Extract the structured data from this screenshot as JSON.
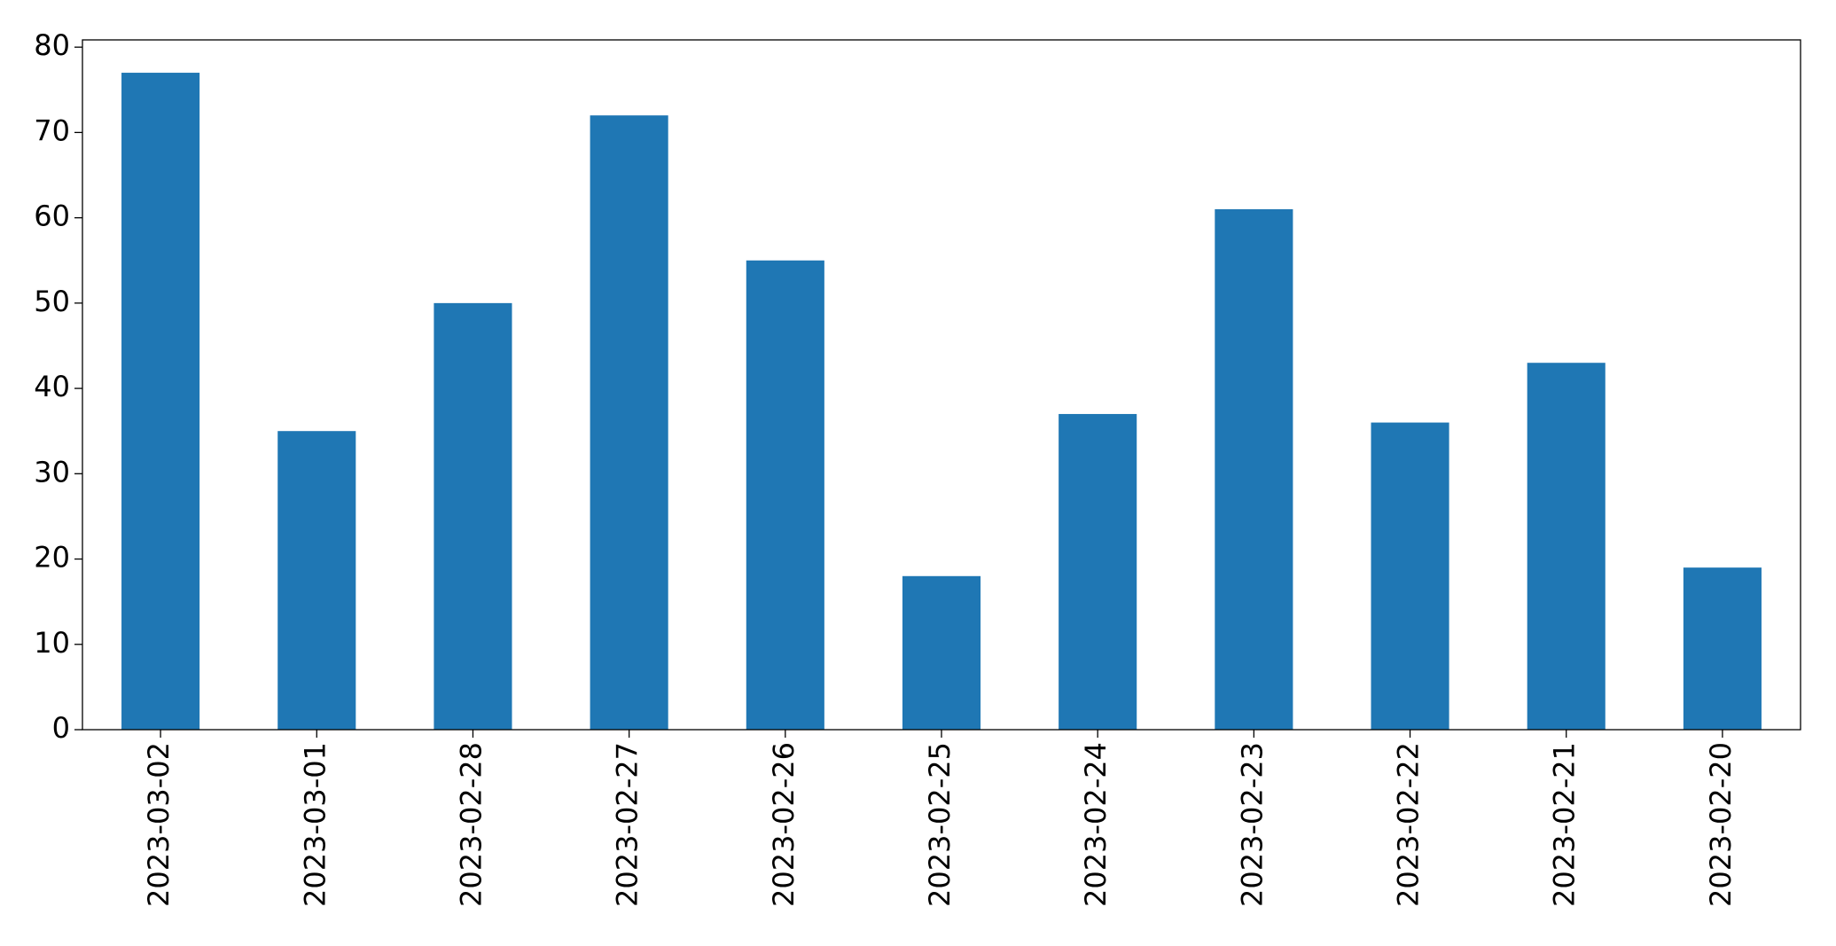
{
  "chart_data": {
    "type": "bar",
    "categories": [
      "2023-03-02",
      "2023-03-01",
      "2023-02-28",
      "2023-02-27",
      "2023-02-26",
      "2023-02-25",
      "2023-02-24",
      "2023-02-23",
      "2023-02-22",
      "2023-02-21",
      "2023-02-20"
    ],
    "values": [
      77,
      35,
      50,
      72,
      55,
      18,
      37,
      61,
      36,
      43,
      19
    ],
    "color": "#1f77b4",
    "ylim": [
      0,
      80.85
    ],
    "yticks": [
      0,
      10,
      20,
      30,
      40,
      50,
      60,
      70,
      80
    ],
    "grid": false
  }
}
